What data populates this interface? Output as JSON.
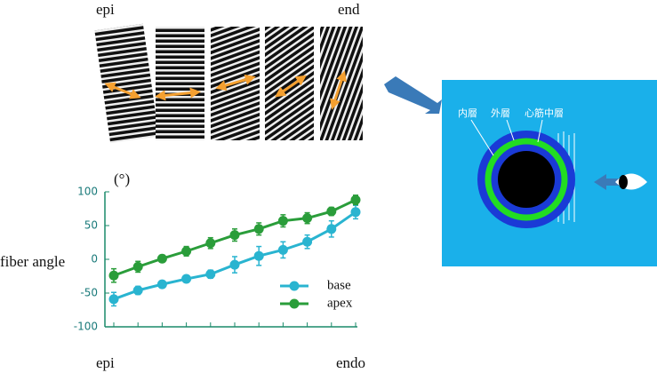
{
  "images": {
    "left_label": "epi",
    "right_label": "end"
  },
  "diagram": {
    "labels": [
      "内層",
      "外層",
      "心筋中層"
    ]
  },
  "chart_data": {
    "type": "line",
    "y_unit": "(°)",
    "y_label": "fiber angle",
    "categories": [
      "epi",
      null,
      null,
      null,
      null,
      null,
      null,
      null,
      null,
      null,
      "endo"
    ],
    "ylim": [
      -100,
      100
    ],
    "yticks": [
      -100,
      -50,
      0,
      50,
      100
    ],
    "legend": "lower right",
    "series": [
      {
        "name": "base",
        "color": "#29b4d0",
        "values": [
          -59,
          -46,
          -37,
          -29,
          -22,
          -8,
          5,
          14,
          26,
          45,
          70
        ],
        "errors": [
          10,
          6,
          5,
          5,
          6,
          12,
          14,
          12,
          10,
          12,
          10
        ]
      },
      {
        "name": "apex",
        "color": "#2a9d3a",
        "values": [
          -24,
          -11,
          1,
          12,
          24,
          36,
          45,
          57,
          61,
          71,
          88
        ],
        "errors": [
          10,
          8,
          5,
          7,
          8,
          9,
          9,
          9,
          8,
          6,
          7
        ]
      }
    ]
  }
}
